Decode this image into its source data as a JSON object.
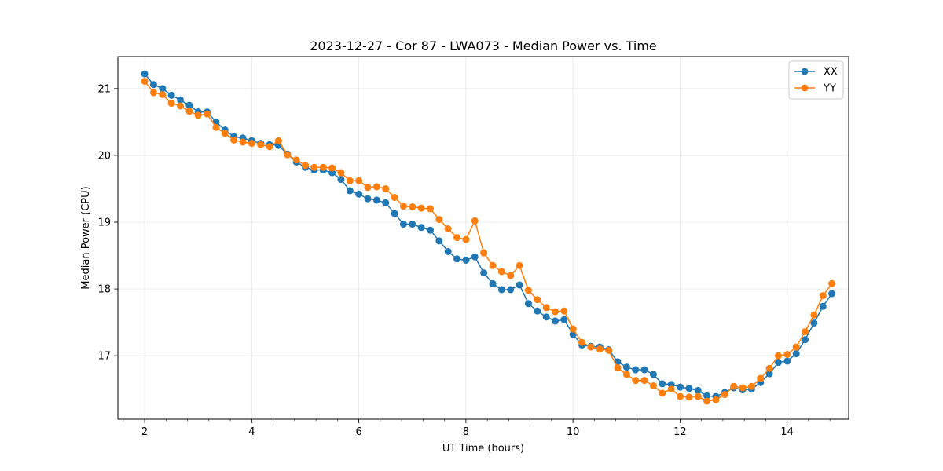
{
  "chart_data": {
    "type": "line",
    "title": "2023-12-27 - Cor 87 - LWA073 - Median Power vs. Time",
    "xlabel": "UT Time (hours)",
    "ylabel": "Median Power (CPU)",
    "xlim": [
      1.5,
      15.15
    ],
    "ylim": [
      16.05,
      21.48
    ],
    "xticks": [
      2,
      4,
      6,
      8,
      10,
      12,
      14
    ],
    "xtick_labels": [
      "2",
      "4",
      "6",
      "8",
      "10",
      "12",
      "14"
    ],
    "yticks": [
      17,
      18,
      19,
      20,
      21
    ],
    "ytick_labels": [
      "17",
      "18",
      "19",
      "20",
      "21"
    ],
    "x_minor_step": 0.4,
    "grid": true,
    "legend_position": "top-right",
    "x_start": 2.0,
    "x_step": 0.1667,
    "series": [
      {
        "name": "XX",
        "color": "#1f77b4",
        "values": [
          21.22,
          21.06,
          21.0,
          20.9,
          20.83,
          20.75,
          20.65,
          20.65,
          20.5,
          20.38,
          20.28,
          20.26,
          20.22,
          20.18,
          20.16,
          20.15,
          20.02,
          19.9,
          19.82,
          19.78,
          19.78,
          19.74,
          19.64,
          19.47,
          19.42,
          19.35,
          19.33,
          19.29,
          19.13,
          18.97,
          18.97,
          18.92,
          18.88,
          18.72,
          18.56,
          18.45,
          18.43,
          18.48,
          18.24,
          18.08,
          17.99,
          17.99,
          18.06,
          17.78,
          17.67,
          17.58,
          17.52,
          17.54,
          17.32,
          17.16,
          17.14,
          17.13,
          17.09,
          16.91,
          16.83,
          16.79,
          16.79,
          16.72,
          16.58,
          16.57,
          16.53,
          16.51,
          16.48,
          16.4,
          16.39,
          16.45,
          16.52,
          16.49,
          16.5,
          16.6,
          16.73,
          16.9,
          16.92,
          17.03,
          17.24,
          17.49,
          17.74,
          17.93
        ]
      },
      {
        "name": "YY",
        "color": "#ff7f0e",
        "values": [
          21.11,
          20.94,
          20.91,
          20.78,
          20.74,
          20.66,
          20.6,
          20.62,
          20.42,
          20.33,
          20.23,
          20.2,
          20.18,
          20.16,
          20.13,
          20.22,
          20.01,
          19.93,
          19.85,
          19.82,
          19.82,
          19.81,
          19.74,
          19.62,
          19.62,
          19.52,
          19.53,
          19.5,
          19.37,
          19.24,
          19.23,
          19.21,
          19.2,
          19.04,
          18.9,
          18.77,
          18.74,
          19.02,
          18.54,
          18.35,
          18.26,
          18.2,
          18.35,
          17.98,
          17.84,
          17.72,
          17.66,
          17.67,
          17.4,
          17.2,
          17.13,
          17.1,
          17.08,
          16.82,
          16.72,
          16.63,
          16.63,
          16.55,
          16.44,
          16.5,
          16.39,
          16.38,
          16.39,
          16.32,
          16.34,
          16.42,
          16.54,
          16.52,
          16.54,
          16.66,
          16.81,
          17.0,
          17.02,
          17.13,
          17.36,
          17.61,
          17.9,
          18.08
        ]
      }
    ]
  }
}
